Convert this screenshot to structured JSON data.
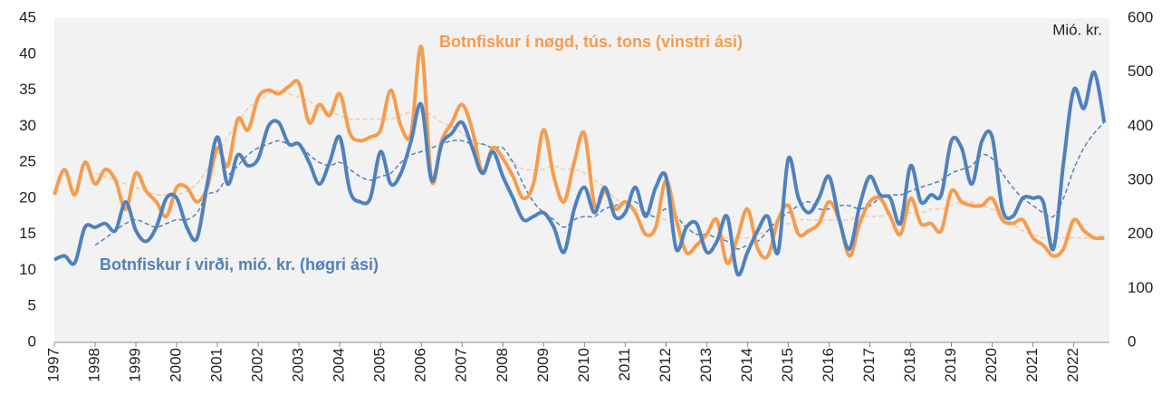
{
  "chart_data": {
    "type": "line",
    "categories": [
      "1997",
      null,
      null,
      null,
      "1998",
      null,
      null,
      null,
      "1999",
      null,
      null,
      null,
      "2000",
      null,
      null,
      null,
      "2001",
      null,
      null,
      null,
      "2002",
      null,
      null,
      null,
      "2003",
      null,
      null,
      null,
      "2004",
      null,
      null,
      null,
      "2005",
      null,
      null,
      null,
      "2006",
      null,
      null,
      null,
      "2007",
      null,
      null,
      null,
      "2008",
      null,
      null,
      null,
      "2009",
      null,
      null,
      null,
      "2010",
      null,
      null,
      null,
      "2011",
      null,
      null,
      null,
      "2012",
      null,
      null,
      null,
      "2013",
      null,
      null,
      null,
      "2014",
      null,
      null,
      null,
      "2015",
      null,
      null,
      null,
      "2016",
      null,
      null,
      null,
      "2017",
      null,
      null,
      null,
      "2018",
      null,
      null,
      null,
      "2019",
      null,
      null,
      null,
      "2020",
      null,
      null,
      null,
      "2021",
      null,
      null,
      null,
      "2022",
      null,
      null,
      null
    ],
    "ylim": [
      0,
      45
    ],
    "yticks": [
      0,
      5,
      10,
      15,
      20,
      25,
      30,
      35,
      40,
      45
    ],
    "y2lim": [
      0,
      600
    ],
    "y2ticks": [
      0,
      100,
      200,
      300,
      400,
      500,
      600
    ],
    "y2label": "Mió. kr.",
    "grid": false,
    "background": "#f2f2f2",
    "series": [
      {
        "name": "Botnfiskur í nøgd, tús. tons (vinstri ási)",
        "color": "#f59c4e",
        "axis": "y",
        "width": 4,
        "values": [
          20.5,
          24,
          20.5,
          25,
          22,
          24,
          22.5,
          18.5,
          23.5,
          21,
          19.5,
          17.5,
          21.5,
          21.5,
          19.5,
          21.5,
          27,
          24.5,
          31,
          29.5,
          34,
          35,
          34.5,
          35.5,
          36,
          30.5,
          33,
          31.5,
          34.5,
          29,
          28,
          28.5,
          29.5,
          35,
          30,
          29,
          41,
          22.5,
          28,
          30.5,
          33,
          29.5,
          23.5,
          27,
          25.5,
          23,
          20,
          22,
          29.5,
          23,
          19.5,
          25,
          29,
          19,
          21,
          18.5,
          19.5,
          18,
          15,
          16,
          22.5,
          17,
          12.5,
          13.5,
          15,
          17,
          11,
          14.5,
          18.5,
          13,
          12,
          17,
          19,
          15,
          15.5,
          16.5,
          19.5,
          17,
          12,
          16.5,
          19.5,
          20,
          17.5,
          15,
          20,
          16.5,
          16.5,
          15.5,
          21,
          19.5,
          19,
          19,
          20,
          17,
          16.5,
          17,
          14.5,
          13.5,
          12,
          13,
          17,
          15.5,
          14.5,
          14.5
        ]
      },
      {
        "name": "Botnfiskur í virði, mió. kr. (høgri ási)",
        "color": "#4f81bd",
        "axis": "y2",
        "width": 4,
        "values": [
          153,
          160,
          147,
          213,
          213,
          220,
          207,
          260,
          207,
          187,
          213,
          267,
          267,
          213,
          193,
          293,
          380,
          293,
          347,
          327,
          340,
          400,
          407,
          367,
          367,
          333,
          293,
          333,
          380,
          280,
          260,
          267,
          353,
          293,
          313,
          373,
          440,
          300,
          367,
          387,
          407,
          360,
          313,
          353,
          307,
          267,
          227,
          233,
          240,
          213,
          167,
          247,
          287,
          240,
          287,
          233,
          240,
          287,
          233,
          287,
          307,
          173,
          213,
          220,
          167,
          187,
          233,
          127,
          167,
          207,
          233,
          167,
          340,
          267,
          240,
          267,
          307,
          227,
          173,
          253,
          307,
          273,
          267,
          220,
          327,
          260,
          273,
          273,
          373,
          360,
          293,
          373,
          380,
          247,
          233,
          267,
          267,
          260,
          173,
          333,
          467,
          433,
          500,
          407
        ]
      },
      {
        "color": "#f8c7a0",
        "axis": "y",
        "width": 1.5,
        "dashed": true,
        "values": [
          null,
          null,
          null,
          null,
          23.5,
          23,
          22.5,
          22,
          21.5,
          21,
          20.5,
          20.5,
          20.5,
          21,
          22,
          24,
          26,
          28.5,
          30.5,
          32.5,
          33.5,
          34.5,
          35,
          34.5,
          34,
          33.5,
          32.5,
          32,
          31.5,
          31,
          31,
          31,
          31,
          31,
          31.5,
          32,
          32,
          31.5,
          30.5,
          30,
          29,
          28,
          27.5,
          27,
          26,
          25,
          24,
          24,
          24,
          24.5,
          24,
          24,
          23.5,
          22.5,
          21.5,
          20,
          19,
          18.5,
          18,
          17.5,
          17,
          16.5,
          16,
          15,
          15,
          14.5,
          14.5,
          14.5,
          14.5,
          15,
          15.5,
          16,
          16.5,
          17,
          17,
          17,
          17,
          17,
          17,
          17.5,
          17.5,
          17.5,
          18,
          18,
          18,
          18,
          18.5,
          18.5,
          19,
          19.5,
          19.5,
          19,
          18.5,
          17.5,
          16.5,
          15.5,
          15,
          14.5,
          14.5,
          14.5,
          14.5,
          14.5,
          14.5,
          15
        ]
      },
      {
        "color": "#4f81bd",
        "axis": "y2",
        "width": 1.5,
        "dashed": true,
        "values": [
          null,
          null,
          null,
          null,
          180,
          193,
          207,
          220,
          227,
          220,
          213,
          220,
          227,
          227,
          240,
          273,
          280,
          307,
          327,
          347,
          360,
          367,
          373,
          367,
          367,
          347,
          333,
          327,
          333,
          320,
          307,
          300,
          307,
          313,
          333,
          347,
          353,
          360,
          367,
          373,
          373,
          367,
          367,
          360,
          360,
          333,
          293,
          260,
          240,
          227,
          213,
          227,
          233,
          233,
          247,
          253,
          260,
          260,
          240,
          233,
          247,
          233,
          213,
          200,
          200,
          193,
          187,
          173,
          180,
          187,
          207,
          227,
          240,
          253,
          260,
          247,
          247,
          253,
          253,
          247,
          253,
          267,
          273,
          273,
          280,
          287,
          293,
          300,
          313,
          320,
          327,
          347,
          340,
          313,
          287,
          267,
          253,
          240,
          233,
          267,
          320,
          360,
          387,
          407
        ]
      }
    ]
  }
}
